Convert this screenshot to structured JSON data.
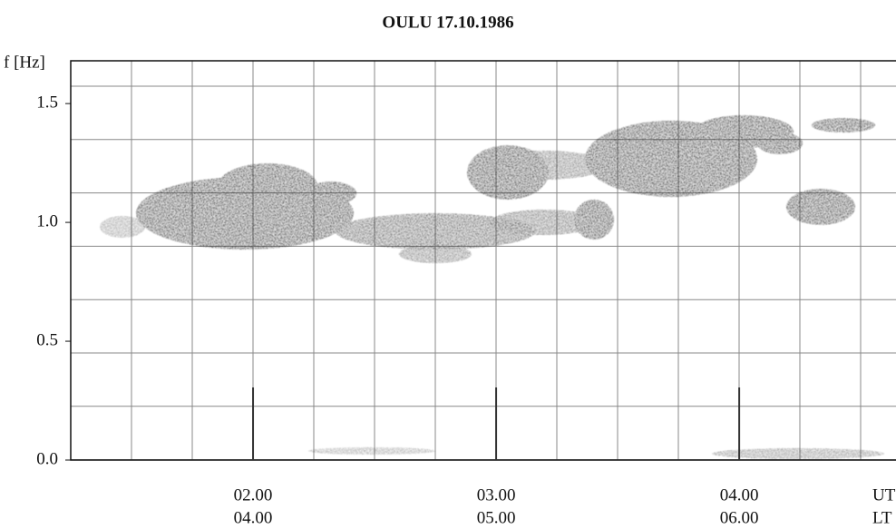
{
  "chart_data": {
    "type": "spectrogram",
    "title": "OULU  17.10.1986",
    "ylabel": "f [Hz]",
    "xlabel": "UT",
    "x2label": "LT",
    "xlim": [
      1.25,
      4.645
    ],
    "ylim": [
      0,
      1.68
    ],
    "xticks": [
      {
        "value": 2,
        "label": "02.00"
      },
      {
        "value": 3,
        "label": "03.00"
      },
      {
        "value": 4,
        "label": "04.00"
      }
    ],
    "x2ticks": [
      "04.00",
      "05.00",
      "06.00"
    ],
    "yticks": [
      {
        "value": 0,
        "label": "0.0"
      },
      {
        "value": 0.5,
        "label": "0.5"
      },
      {
        "value": 1,
        "label": "1.0"
      },
      {
        "value": 1.5,
        "label": "1.5"
      }
    ]
  }
}
